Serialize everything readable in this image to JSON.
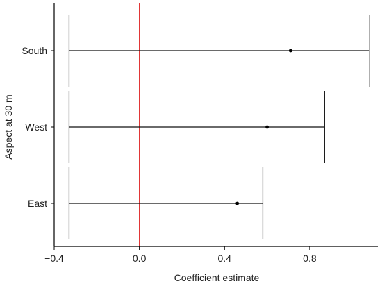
{
  "chart_data": {
    "type": "forest",
    "title": "",
    "xlabel": "Coefficient estimate",
    "ylabel": "Aspect at 30 m",
    "xlim": [
      -0.4,
      1.12
    ],
    "xticks": [
      -0.4,
      0.0,
      0.4,
      0.8
    ],
    "xtick_labels": [
      "−0.4",
      "0.0",
      "0.4",
      "0.8"
    ],
    "reference_line": {
      "x": 0.0,
      "color": "#e0302f"
    },
    "grid": false,
    "categories": [
      "South",
      "West",
      "East"
    ],
    "estimates": [
      {
        "label": "South",
        "estimate": 0.71,
        "lower": -0.33,
        "upper": 1.08
      },
      {
        "label": "West",
        "estimate": 0.6,
        "lower": -0.33,
        "upper": 0.87
      },
      {
        "label": "East",
        "estimate": 0.46,
        "lower": -0.33,
        "upper": 0.58
      }
    ],
    "colors": {
      "interval": "#111111",
      "point": "#000000",
      "axis": "#000000"
    }
  }
}
